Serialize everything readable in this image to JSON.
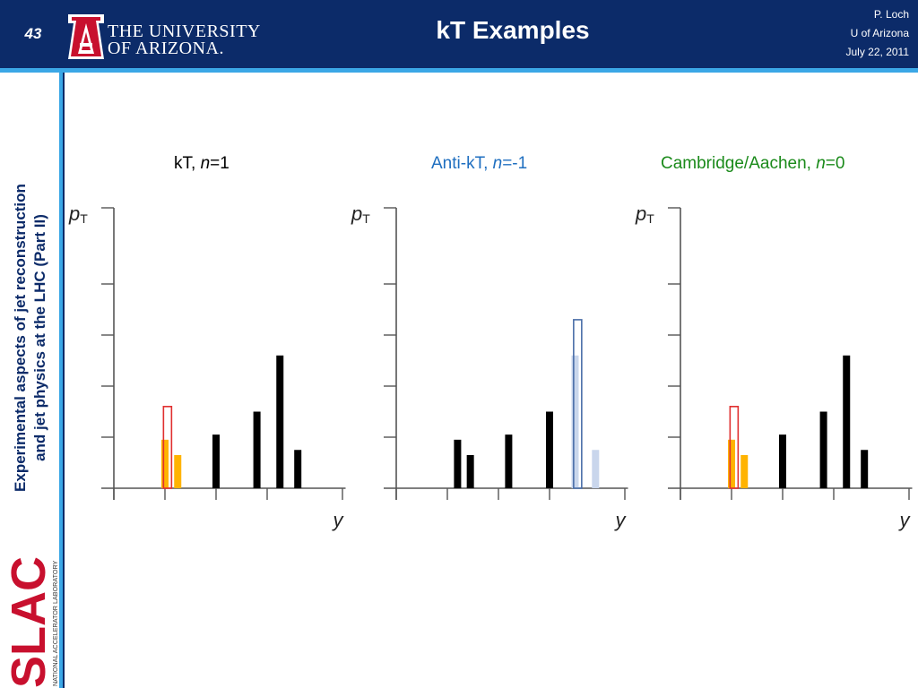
{
  "header": {
    "slide_number": "43",
    "university_line1": "THE UNIVERSITY",
    "university_line2": "OF ARIZONA.",
    "title": "kT Examples",
    "author": "P. Loch",
    "affiliation": "U of Arizona",
    "date": "July 22, 2011"
  },
  "sidebar": {
    "title_line1": "Experimental aspects of jet reconstruction",
    "title_line2": "and jet physics at the LHC (Part II)",
    "lab_logo": "SLAC",
    "lab_name": "NATIONAL ACCELERATOR LABORATORY"
  },
  "colors": {
    "header_bg": "#0c2b69",
    "accent": "#3ba7e6",
    "kt_title": "#000000",
    "antikt_title": "#1f6fc0",
    "ca_title": "#1a8a1a",
    "black_bar": "#000000",
    "orange_bar": "#ffb300",
    "red_outline": "#e03030",
    "blue_outline": "#4a6ea8",
    "light_blue_bar": "#c9d6ec"
  },
  "chart_data": [
    {
      "type": "bar",
      "title_prefix": "kT, ",
      "title_var": "n",
      "title_suffix": "=1",
      "title_color": "#000000",
      "ylabel": "pT",
      "xlabel": "y",
      "ylim": [
        0,
        5.5
      ],
      "yticks": [
        0,
        1,
        2,
        3,
        4,
        5
      ],
      "xlim": [
        0,
        4.5
      ],
      "xticks": [
        0,
        1,
        2,
        3,
        4
      ],
      "bars": [
        {
          "x": 1.0,
          "value": 0.95,
          "style": "orange"
        },
        {
          "x": 1.25,
          "value": 0.65,
          "style": "orange"
        },
        {
          "x": 1.05,
          "value": 1.6,
          "style": "red-outline"
        },
        {
          "x": 2.0,
          "value": 1.05,
          "style": "black"
        },
        {
          "x": 2.8,
          "value": 1.5,
          "style": "black"
        },
        {
          "x": 3.25,
          "value": 2.6,
          "style": "black"
        },
        {
          "x": 3.6,
          "value": 0.75,
          "style": "black"
        }
      ]
    },
    {
      "type": "bar",
      "title_prefix": "Anti-kT, ",
      "title_var": "n",
      "title_suffix": "=-1",
      "title_color": "#1f6fc0",
      "ylabel": "pT",
      "xlabel": "y",
      "ylim": [
        0,
        5.5
      ],
      "yticks": [
        0,
        1,
        2,
        3,
        4,
        5
      ],
      "xlim": [
        0,
        4.5
      ],
      "xticks": [
        0,
        1,
        2,
        3,
        4
      ],
      "bars": [
        {
          "x": 1.2,
          "value": 0.95,
          "style": "black"
        },
        {
          "x": 1.45,
          "value": 0.65,
          "style": "black"
        },
        {
          "x": 2.2,
          "value": 1.05,
          "style": "black"
        },
        {
          "x": 3.0,
          "value": 1.5,
          "style": "black"
        },
        {
          "x": 3.5,
          "value": 2.6,
          "style": "light-blue"
        },
        {
          "x": 3.9,
          "value": 0.75,
          "style": "light-blue"
        },
        {
          "x": 3.55,
          "value": 3.3,
          "style": "blue-outline"
        }
      ]
    },
    {
      "type": "bar",
      "title_prefix": "Cambridge/Aachen, ",
      "title_var": "n",
      "title_suffix": "=0",
      "title_color": "#1a8a1a",
      "ylabel": "pT",
      "xlabel": "y",
      "ylim": [
        0,
        5.5
      ],
      "yticks": [
        0,
        1,
        2,
        3,
        4,
        5
      ],
      "xlim": [
        0,
        4.5
      ],
      "xticks": [
        0,
        1,
        2,
        3,
        4
      ],
      "bars": [
        {
          "x": 1.0,
          "value": 0.95,
          "style": "orange"
        },
        {
          "x": 1.25,
          "value": 0.65,
          "style": "orange"
        },
        {
          "x": 1.05,
          "value": 1.6,
          "style": "red-outline"
        },
        {
          "x": 2.0,
          "value": 1.05,
          "style": "black"
        },
        {
          "x": 2.8,
          "value": 1.5,
          "style": "black"
        },
        {
          "x": 3.25,
          "value": 2.6,
          "style": "black"
        },
        {
          "x": 3.6,
          "value": 0.75,
          "style": "black"
        }
      ]
    }
  ]
}
